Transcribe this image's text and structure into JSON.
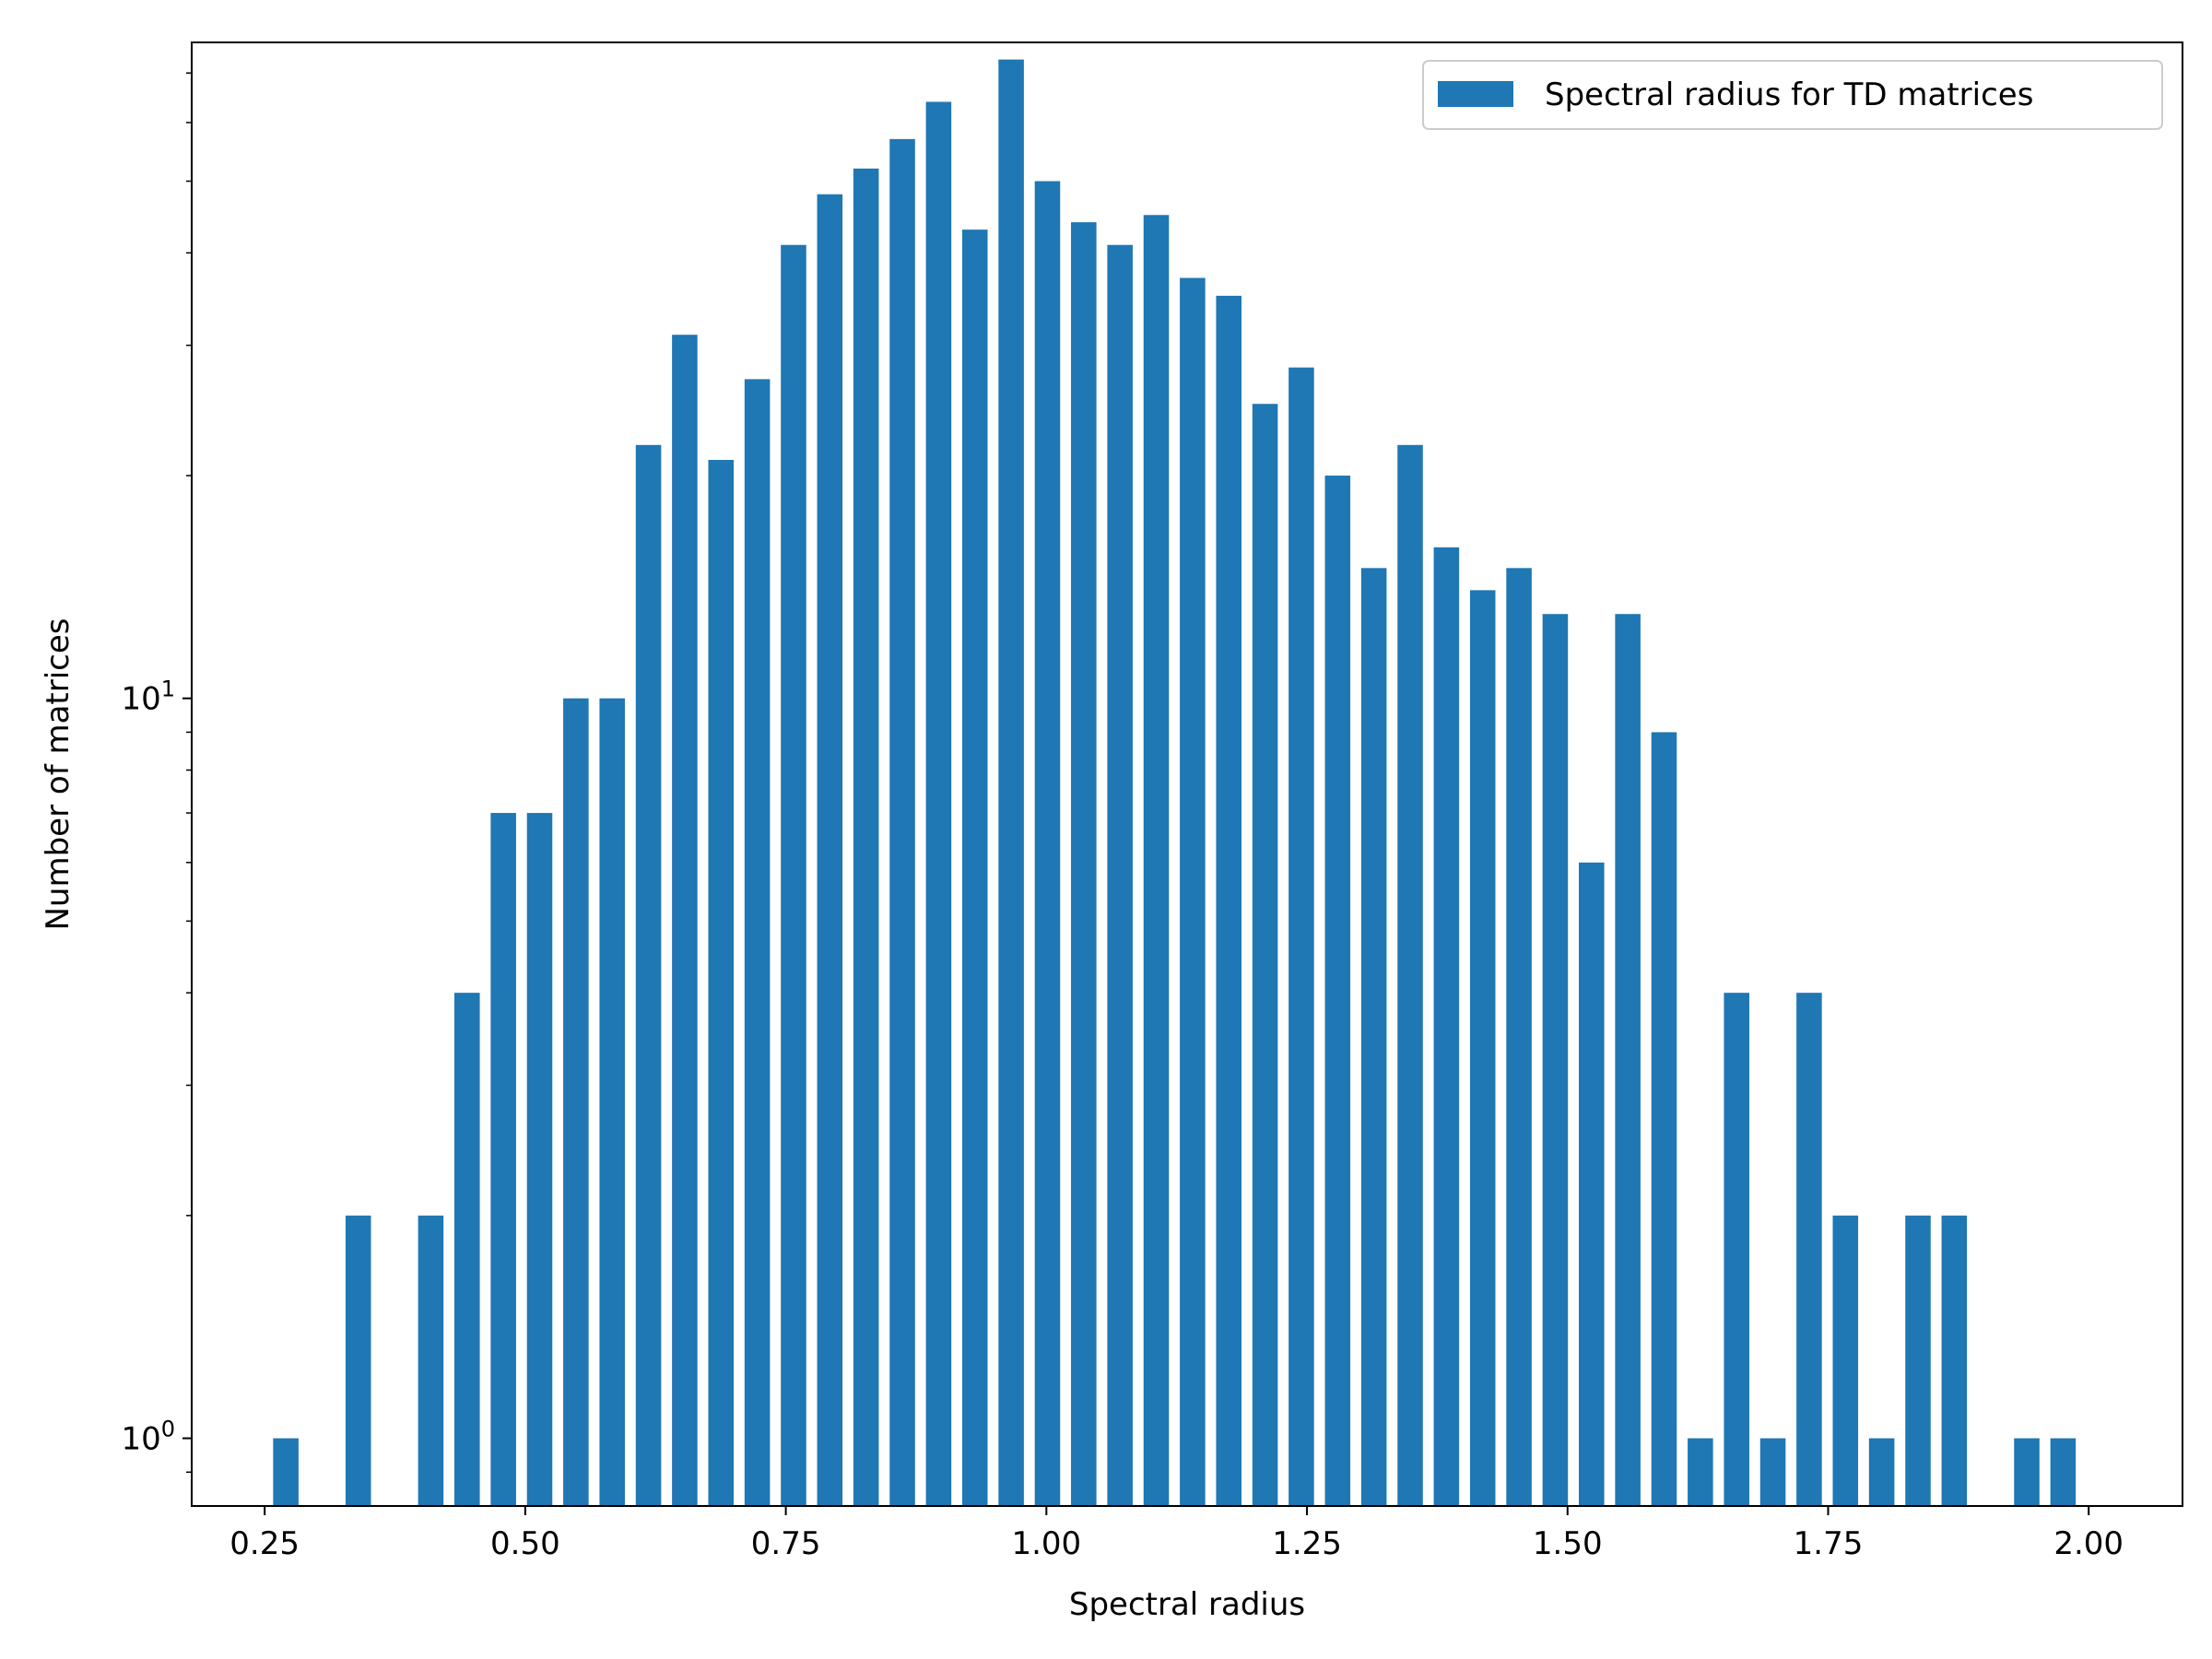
{
  "chart_data": {
    "type": "bar",
    "xlabel": "Spectral radius",
    "ylabel": "Number of matrices",
    "yscale": "log",
    "xlim": [
      0.18,
      2.09
    ],
    "ylim": [
      0.81,
      77
    ],
    "grid": false,
    "legend_placement": "top-right",
    "bar_color": "#1f77b4",
    "x_ticks": [
      {
        "value": 0.25,
        "label": "0.25"
      },
      {
        "value": 0.5,
        "label": "0.50"
      },
      {
        "value": 0.75,
        "label": "0.75"
      },
      {
        "value": 1.0,
        "label": "1.00"
      },
      {
        "value": 1.25,
        "label": "1.25"
      },
      {
        "value": 1.5,
        "label": "1.50"
      },
      {
        "value": 1.75,
        "label": "1.75"
      },
      {
        "value": 2.0,
        "label": "2.00"
      }
    ],
    "y_ticks": [
      {
        "value": 1,
        "base": "10",
        "exp": "0"
      },
      {
        "value": 10,
        "base": "10",
        "exp": "1"
      }
    ],
    "bin_width": 0.0348,
    "series": [
      {
        "name": "Spectral radius for TD matrices",
        "x": [
          0.2703,
          0.3398,
          0.4094,
          0.4442,
          0.479,
          0.5138,
          0.5486,
          0.5834,
          0.6182,
          0.653,
          0.6878,
          0.7226,
          0.7574,
          0.7922,
          0.827,
          0.8618,
          0.8966,
          0.9314,
          0.9662,
          1.001,
          1.0358,
          1.0706,
          1.1054,
          1.1402,
          1.175,
          1.2098,
          1.2446,
          1.2794,
          1.3142,
          1.349,
          1.3838,
          1.4186,
          1.4534,
          1.4882,
          1.523,
          1.5578,
          1.5926,
          1.6274,
          1.6622,
          1.697,
          1.7318,
          1.7666,
          1.8014,
          1.8362,
          1.871,
          1.9406,
          1.9754
        ],
        "values": [
          1,
          2,
          2,
          4,
          7,
          7,
          10,
          10,
          22,
          31,
          21,
          27,
          41,
          48,
          52,
          57,
          64,
          43,
          73,
          50,
          44,
          41,
          45,
          37,
          35,
          25,
          28,
          20,
          15,
          22,
          16,
          14,
          15,
          13,
          6,
          13,
          9,
          1,
          4,
          1,
          4,
          2,
          1,
          2,
          2,
          1,
          1
        ]
      }
    ]
  }
}
